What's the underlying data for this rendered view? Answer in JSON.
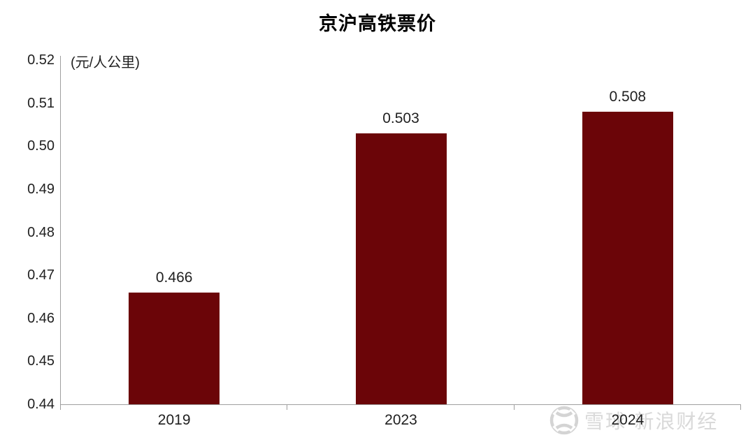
{
  "chart_data": {
    "type": "bar",
    "title": "京沪高铁票价",
    "unit_label": "(元/人公里)",
    "categories": [
      "2019",
      "2023",
      "2024"
    ],
    "values": [
      0.466,
      0.503,
      0.508
    ],
    "data_labels": [
      "0.466",
      "0.503",
      "0.508"
    ],
    "ylim": [
      0.44,
      0.52
    ],
    "ytick_labels": [
      "0.52",
      "0.51",
      "0.50",
      "0.49",
      "0.48",
      "0.47",
      "0.46",
      "0.45",
      "0.44"
    ],
    "ytick_values": [
      0.52,
      0.51,
      0.5,
      0.49,
      0.48,
      0.47,
      0.46,
      0.45,
      0.44
    ],
    "grid": false,
    "legend_position": "none",
    "bar_color": "#6b0508",
    "axis_color": "#9e9e9e",
    "text_color": "#1f1f1f"
  },
  "watermark": {
    "text": "雪球·新浪财经",
    "color": "#d9d9d9",
    "logo": "xueqiu-logo-icon"
  }
}
